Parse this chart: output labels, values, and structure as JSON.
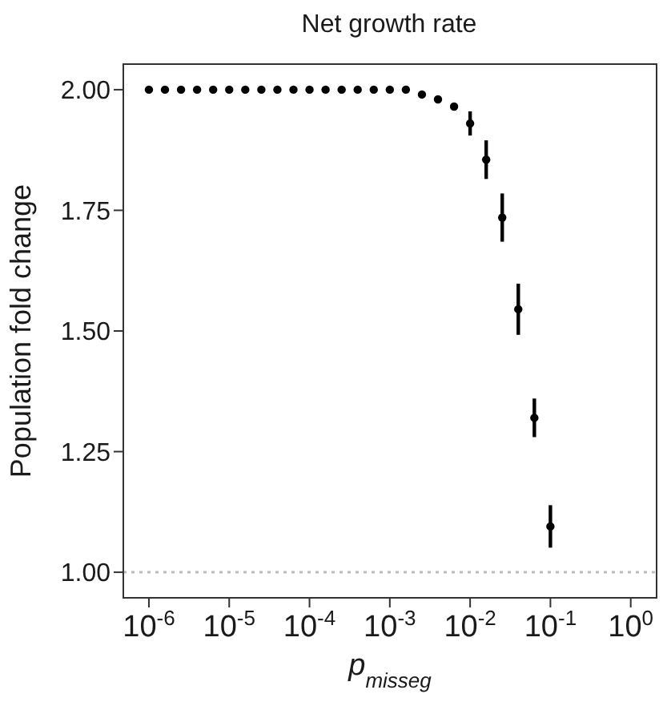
{
  "chart_data": {
    "type": "scatter",
    "title": "Net growth rate",
    "xlabel": "p$_{misseg}$",
    "ylabel": "Population fold change",
    "log": "x",
    "x": [
      1e-06,
      1.585e-06,
      2.512e-06,
      3.981e-06,
      6.31e-06,
      1e-05,
      1.585e-05,
      2.512e-05,
      3.981e-05,
      6.31e-05,
      0.0001,
      0.0001585,
      0.0002512,
      0.0003981,
      0.000631,
      0.001,
      0.001585,
      0.002512,
      0.003981,
      0.00631,
      0.01,
      0.01585,
      0.02512,
      0.03981,
      0.0631,
      0.1
    ],
    "series": [
      {
        "color": "#000000",
        "values": [
          2.0,
          2.0,
          2.0,
          2.0,
          2.0,
          2.0,
          2.0,
          2.0,
          2.0,
          2.0,
          2.0,
          2.0,
          2.0,
          2.0,
          2.0,
          2.0,
          2.0,
          1.99,
          1.98,
          1.965,
          1.93,
          1.855,
          1.735,
          1.545,
          1.32,
          1.095
        ],
        "errors": [
          null,
          null,
          null,
          null,
          null,
          null,
          null,
          null,
          null,
          null,
          null,
          null,
          null,
          null,
          null,
          null,
          null,
          null,
          null,
          0.008,
          0.025,
          0.04,
          0.05,
          0.053,
          0.04,
          0.044
        ]
      }
    ],
    "xlim": [
      4.8e-07,
      2.1
    ],
    "xticks": [
      {
        "value": 1e-06,
        "label": "10$^{-6}$"
      },
      {
        "value": 1e-05,
        "label": "10$^{-5}$"
      },
      {
        "value": 0.0001,
        "label": "10$^{-4}$"
      },
      {
        "value": 0.001,
        "label": "10$^{-3}$"
      },
      {
        "value": 0.01,
        "label": "10$^{-2}$"
      },
      {
        "value": 0.1,
        "label": "10$^{-1}$"
      },
      {
        "value": 1,
        "label": "10$^{0}$"
      }
    ],
    "ylim": [
      0.947,
      2.053
    ],
    "yticks": [
      {
        "value": 1,
        "label": "1.00"
      },
      {
        "value": 1.25,
        "label": "1.25"
      },
      {
        "value": 1.5,
        "label": "1.50"
      },
      {
        "value": 1.75,
        "label": "1.75"
      },
      {
        "value": 2,
        "label": "2.00"
      }
    ],
    "ref_lines": [
      {
        "axis": "y",
        "value": 1,
        "color": "#bbbbbb",
        "line_style": "dotted"
      }
    ],
    "marker": "circle"
  }
}
